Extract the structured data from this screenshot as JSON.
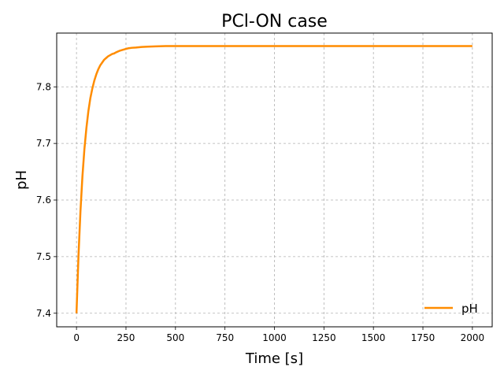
{
  "chart_data": {
    "type": "line",
    "title": "PCl-ON case",
    "xlabel": "Time [s]",
    "ylabel": "pH",
    "xlim": [
      -100,
      2100
    ],
    "ylim": [
      7.376,
      7.895
    ],
    "xticks": [
      0,
      250,
      500,
      750,
      1000,
      1250,
      1500,
      1750,
      2000
    ],
    "xtick_labels": [
      "0",
      "250",
      "500",
      "750",
      "1000",
      "1250",
      "1500",
      "1750",
      "2000"
    ],
    "yticks": [
      7.4,
      7.5,
      7.6,
      7.7,
      7.8
    ],
    "ytick_labels": [
      "7.4",
      "7.5",
      "7.6",
      "7.7",
      "7.8"
    ],
    "grid": true,
    "legend_position": "lower-right",
    "series": [
      {
        "name": "pH",
        "color": "#ff8c00",
        "x": [
          0,
          10,
          20,
          30,
          40,
          50,
          60,
          70,
          80,
          90,
          100,
          110,
          120,
          130,
          140,
          150,
          160,
          170,
          180,
          190,
          200,
          220,
          240,
          260,
          280,
          300,
          330,
          360,
          400,
          450,
          500,
          600,
          800,
          1000,
          1500,
          2000
        ],
        "y": [
          7.4,
          7.501,
          7.58,
          7.642,
          7.69,
          7.727,
          7.757,
          7.78,
          7.797,
          7.811,
          7.822,
          7.831,
          7.838,
          7.843,
          7.848,
          7.851,
          7.854,
          7.856,
          7.858,
          7.859,
          7.861,
          7.864,
          7.866,
          7.868,
          7.869,
          7.8695,
          7.8705,
          7.871,
          7.8715,
          7.872,
          7.872,
          7.872,
          7.872,
          7.872,
          7.872,
          7.872
        ]
      }
    ]
  }
}
